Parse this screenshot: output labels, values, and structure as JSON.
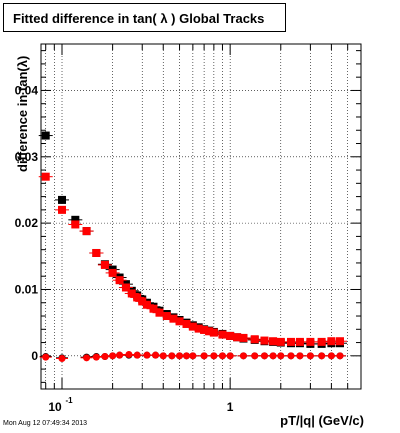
{
  "chart_data": {
    "type": "scatter",
    "title": "Fitted difference in tan( λ )  Global Tracks",
    "xlabel": "pT/|q| (GeV/c)",
    "ylabel": "difference in tan(λ)",
    "x_scale": "log",
    "xlim": [
      0.075,
      6.0
    ],
    "ylim": [
      -0.005,
      0.047
    ],
    "grid": true,
    "x_ticks": [
      {
        "value": 0.1,
        "base": "10",
        "exp": "-1"
      },
      {
        "value": 1,
        "label": "1"
      }
    ],
    "y_ticks": [
      0,
      0.01,
      0.02,
      0.03,
      0.04
    ],
    "y_tick_labels": [
      "0",
      "0.01",
      "0.02",
      "0.03",
      "0.04"
    ],
    "series": [
      {
        "color": "#000000",
        "marker": "square",
        "x": [
          0.08,
          0.1,
          0.12,
          0.14,
          0.16,
          0.18,
          0.2,
          0.22,
          0.24,
          0.26,
          0.28,
          0.3,
          0.32,
          0.35,
          0.38,
          0.42,
          0.46,
          0.5,
          0.55,
          0.6,
          0.65,
          0.7,
          0.75,
          0.8,
          0.9,
          1.0,
          1.1,
          1.2,
          1.4,
          1.6,
          1.8,
          2.0,
          2.3,
          2.6,
          3.0,
          3.5,
          4.0,
          4.5
        ],
        "y": [
          0.0332,
          0.0235,
          0.0205,
          0.0188,
          0.0155,
          0.0138,
          0.013,
          0.0118,
          0.0108,
          0.0098,
          0.0091,
          0.0085,
          0.008,
          0.0074,
          0.0068,
          0.0063,
          0.0058,
          0.0054,
          0.005,
          0.0046,
          0.0043,
          0.004,
          0.0038,
          0.0036,
          0.0033,
          0.003,
          0.0028,
          0.0026,
          0.0024,
          0.0022,
          0.0021,
          0.002,
          0.0019,
          0.0019,
          0.0018,
          0.0018,
          0.0019,
          0.0019
        ]
      },
      {
        "color": "#ff0000",
        "marker": "square",
        "x": [
          0.08,
          0.1,
          0.12,
          0.14,
          0.16,
          0.18,
          0.2,
          0.22,
          0.24,
          0.26,
          0.28,
          0.3,
          0.32,
          0.35,
          0.38,
          0.42,
          0.46,
          0.5,
          0.55,
          0.6,
          0.65,
          0.7,
          0.75,
          0.8,
          0.9,
          1.0,
          1.1,
          1.2,
          1.4,
          1.6,
          1.8,
          2.0,
          2.3,
          2.6,
          3.0,
          3.5,
          4.0,
          4.5
        ],
        "y": [
          0.027,
          0.022,
          0.0198,
          0.0188,
          0.0155,
          0.0137,
          0.0125,
          0.0114,
          0.0103,
          0.0094,
          0.0088,
          0.0082,
          0.0077,
          0.0071,
          0.0065,
          0.006,
          0.0056,
          0.0052,
          0.0048,
          0.0044,
          0.0041,
          0.0039,
          0.0037,
          0.0035,
          0.0032,
          0.003,
          0.0028,
          0.0027,
          0.0025,
          0.0023,
          0.0022,
          0.0021,
          0.0021,
          0.0021,
          0.0021,
          0.0021,
          0.0022,
          0.0022
        ]
      },
      {
        "color": "#000000",
        "marker": "circle",
        "x": [
          0.08,
          0.1,
          0.14,
          0.16,
          0.18,
          0.2,
          0.22,
          0.25,
          0.28,
          0.32,
          0.36,
          0.4,
          0.45,
          0.5,
          0.55,
          0.6,
          0.7,
          0.8,
          0.9,
          1.0,
          1.2,
          1.4,
          1.6,
          1.8,
          2.0,
          2.3,
          2.6,
          3.0,
          3.5,
          4.0,
          4.5
        ],
        "y": [
          -0.0001,
          -0.0003,
          -0.0002,
          -0.0001,
          -0.0001,
          0.0,
          0.0001,
          0.0001,
          0.0001,
          0.0001,
          0.0001,
          0.0,
          0.0,
          0.0,
          0.0,
          0.0,
          0.0,
          0.0,
          0.0,
          0.0,
          0.0,
          0.0,
          0.0,
          0.0,
          0.0,
          0.0,
          0.0,
          0.0,
          0.0,
          0.0,
          0.0
        ]
      },
      {
        "color": "#ff0000",
        "marker": "circle",
        "x": [
          0.08,
          0.1,
          0.14,
          0.16,
          0.18,
          0.2,
          0.22,
          0.25,
          0.28,
          0.32,
          0.36,
          0.4,
          0.45,
          0.5,
          0.55,
          0.6,
          0.7,
          0.8,
          0.9,
          1.0,
          1.2,
          1.4,
          1.6,
          1.8,
          2.0,
          2.3,
          2.6,
          3.0,
          3.5,
          4.0,
          4.5
        ],
        "y": [
          -0.0002,
          -0.0004,
          -0.0003,
          -0.0002,
          -0.0001,
          0.0,
          0.0001,
          0.0002,
          0.0001,
          0.0001,
          0.0001,
          0.0,
          0.0,
          0.0,
          0.0,
          0.0,
          0.0,
          0.0,
          0.0,
          0.0,
          0.0,
          0.0,
          0.0,
          0.0,
          0.0,
          0.0,
          0.0,
          0.0,
          0.0,
          0.0,
          0.0
        ]
      }
    ]
  },
  "footer": {
    "datestamp": "Mon Aug 12 07:49:34 2013"
  }
}
